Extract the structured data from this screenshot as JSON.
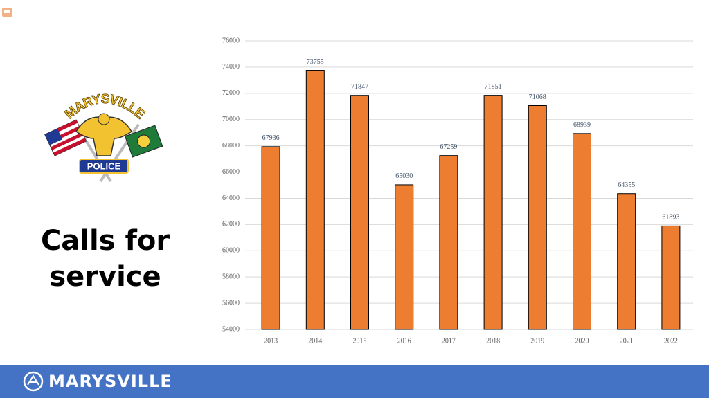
{
  "slide": {
    "heading": [
      "Calls for",
      "service"
    ]
  },
  "logo": {
    "top": "MARYSVILLE",
    "bottom": "POLICE"
  },
  "footer": {
    "brand": "MARYSVILLE"
  },
  "chart_data": {
    "type": "bar",
    "categories": [
      "2013",
      "2014",
      "2015",
      "2016",
      "2017",
      "2018",
      "2019",
      "2020",
      "2021",
      "2022"
    ],
    "values": [
      67936,
      73755,
      71847,
      65030,
      67259,
      71851,
      71068,
      68939,
      64355,
      61893
    ],
    "color": "#ed7d31",
    "ylim": [
      54000,
      76000
    ],
    "yticks": [
      54000,
      56000,
      58000,
      60000,
      62000,
      64000,
      66000,
      68000,
      70000,
      72000,
      74000,
      76000
    ],
    "grid": true
  }
}
